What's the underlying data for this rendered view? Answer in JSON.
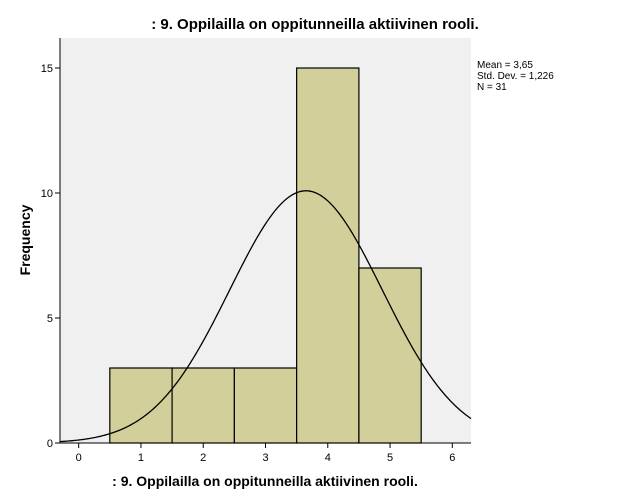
{
  "chart_data": {
    "type": "bar",
    "title": ": 9. Oppilailla on oppitunneilla aktiivinen rooli.",
    "xlabel": ": 9. Oppilailla on oppitunneilla aktiivinen rooli.",
    "ylabel": "Frequency",
    "categories": [
      "1",
      "2",
      "3",
      "4",
      "5"
    ],
    "values": [
      3,
      3,
      3,
      15,
      7
    ],
    "x_ticks": [
      0,
      1,
      2,
      3,
      4,
      5,
      6
    ],
    "y_ticks": [
      0,
      5,
      10,
      15
    ],
    "xlim": [
      -0.3,
      6.3
    ],
    "ylim": [
      0,
      16.2
    ],
    "normal_curve": {
      "mean": 3.65,
      "sd": 1.226,
      "n": 31,
      "bin_width": 1
    },
    "stats": [
      "Mean = 3,65",
      "Std. Dev. = 1,226",
      "N = 31"
    ],
    "grid": false,
    "colors": {
      "bar_fill": "#d3cf9a",
      "bar_stroke": "#000000",
      "plot_bg": "#f0f0f0",
      "curve": "#000000"
    }
  }
}
